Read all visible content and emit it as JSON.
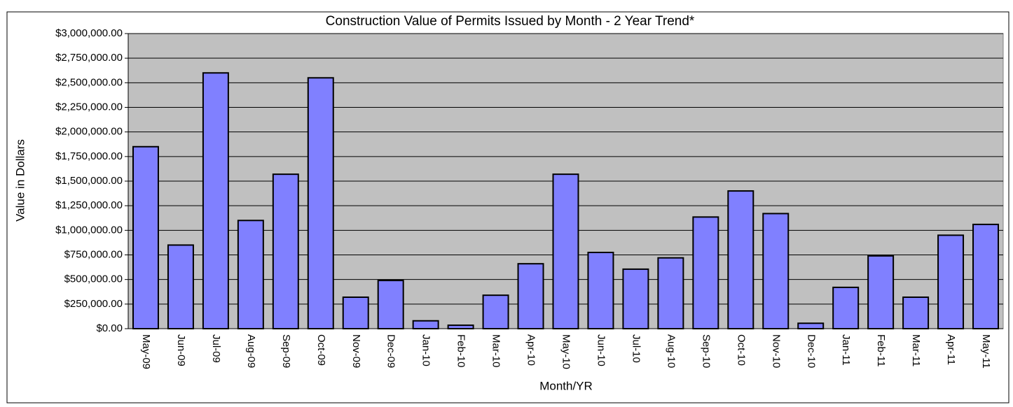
{
  "chart_data": {
    "type": "bar",
    "title": "Construction Value of Permits Issued by Month - 2 Year Trend*",
    "y_label": "Value in Dollars",
    "x_label": "Month/YR",
    "categories": [
      "May-09",
      "Jun-09",
      "Jul-09",
      "Aug-09",
      "Sep-09",
      "Oct-09",
      "Nov-09",
      "Dec-09",
      "Jan-10",
      "Feb-10",
      "Mar-10",
      "Apr-10",
      "May-10",
      "Jun-10",
      "Jul-10",
      "Aug-10",
      "Sep-10",
      "Oct-10",
      "Nov-10",
      "Dec-10",
      "Jan-11",
      "Feb-11",
      "Mar-11",
      "Apr-11",
      "May-11"
    ],
    "values": [
      1850000,
      850000,
      2600000,
      1100000,
      1570000,
      2550000,
      320000,
      490000,
      80000,
      35000,
      340000,
      660000,
      1570000,
      775000,
      605000,
      720000,
      1135000,
      1400000,
      1170000,
      55000,
      420000,
      740000,
      320000,
      950000,
      1060000
    ],
    "color": "#8080ff",
    "ylim": [
      0,
      3000000
    ],
    "yticks": [
      {
        "value": 0,
        "label": "$0.00"
      },
      {
        "value": 250000,
        "label": "$250,000.00"
      },
      {
        "value": 500000,
        "label": "$500,000.00"
      },
      {
        "value": 750000,
        "label": "$750,000.00"
      },
      {
        "value": 1000000,
        "label": "$1,000,000.00"
      },
      {
        "value": 1250000,
        "label": "$1,250,000.00"
      },
      {
        "value": 1500000,
        "label": "$1,500,000.00"
      },
      {
        "value": 1750000,
        "label": "$1,750,000.00"
      },
      {
        "value": 2000000,
        "label": "$2,000,000.00"
      },
      {
        "value": 2250000,
        "label": "$2,250,000.00"
      },
      {
        "value": 2500000,
        "label": "$2,500,000.00"
      },
      {
        "value": 2750000,
        "label": "$2,750,000.00"
      },
      {
        "value": 3000000,
        "label": "$3,000,000.00"
      }
    ],
    "grid": true
  }
}
